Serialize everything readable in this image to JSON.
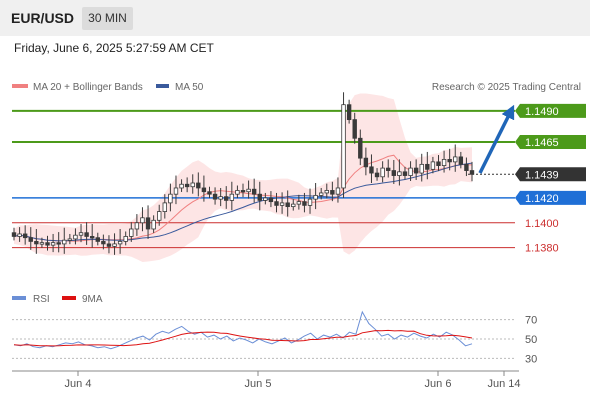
{
  "header": {
    "pair": "EUR/USD",
    "timeframe": "30 MIN"
  },
  "timestamp": "Friday, June 6, 2025 5:27:59 AM CET",
  "copyright": "Research © 2025 Trading Central",
  "colors": {
    "resistance": "#4c9a1a",
    "support_pivot": "#1f6fd6",
    "support": "#cc2f2f",
    "current": "#333333",
    "ma20": "#f08080",
    "ma50": "#3a5a9c",
    "bollinger_fill": "#fde0e0",
    "candle": "#3a3a3a",
    "rsi": "#6b8fd6",
    "rsi_ma": "#dd1111",
    "arrow": "#2066b8"
  },
  "chart_data": {
    "type": "candlestick",
    "x_ticks": [
      "Jun 4",
      "Jun 5",
      "Jun 6",
      "Jun 14"
    ],
    "legend": [
      {
        "label": "MA 20 + Bollinger Bands",
        "color": "#f08080"
      },
      {
        "label": "MA 50",
        "color": "#3a5a9c"
      }
    ],
    "ylim": [
      1.1362,
      1.1502
    ],
    "levels": [
      {
        "value": 1.149,
        "label": "1.1490",
        "kind": "resistance"
      },
      {
        "value": 1.1465,
        "label": "1.1465",
        "kind": "resistance"
      },
      {
        "value": 1.1439,
        "label": "1.1439",
        "kind": "current"
      },
      {
        "value": 1.142,
        "label": "1.1420",
        "kind": "pivot"
      },
      {
        "value": 1.14,
        "label": "1.1400",
        "kind": "support"
      },
      {
        "value": 1.138,
        "label": "1.1380",
        "kind": "support"
      }
    ],
    "close_series": [
      1.1389,
      1.1391,
      1.1388,
      1.1385,
      1.1383,
      1.1384,
      1.1382,
      1.1384,
      1.1383,
      1.1386,
      1.1387,
      1.139,
      1.1392,
      1.1389,
      1.1388,
      1.1385,
      1.1383,
      1.1381,
      1.1383,
      1.1385,
      1.1389,
      1.1395,
      1.14,
      1.1404,
      1.1395,
      1.1402,
      1.1409,
      1.1416,
      1.1423,
      1.1428,
      1.1431,
      1.1429,
      1.1432,
      1.1428,
      1.1425,
      1.1423,
      1.1419,
      1.1421,
      1.1418,
      1.1423,
      1.1426,
      1.1425,
      1.1427,
      1.1423,
      1.1418,
      1.142,
      1.1417,
      1.1414,
      1.1416,
      1.1413,
      1.1415,
      1.1417,
      1.1414,
      1.1419,
      1.1422,
      1.1424,
      1.1426,
      1.1423,
      1.1428,
      1.1495,
      1.1483,
      1.1468,
      1.1452,
      1.1445,
      1.144,
      1.1437,
      1.1444,
      1.1442,
      1.1438,
      1.1441,
      1.1438,
      1.1444,
      1.144,
      1.1447,
      1.1443,
      1.1449,
      1.1446,
      1.1451,
      1.1449,
      1.1453,
      1.1447,
      1.1442,
      1.1439
    ],
    "rsi": {
      "legend": [
        {
          "label": "RSI",
          "color": "#6b8fd6"
        },
        {
          "label": "9MA",
          "color": "#dd1111"
        }
      ],
      "ticks": [
        70,
        50,
        30
      ],
      "ylim": [
        20,
        80
      ],
      "values": [
        44,
        43,
        45,
        42,
        41,
        43,
        42,
        44,
        46,
        45,
        47,
        44,
        43,
        41,
        42,
        40,
        42,
        45,
        48,
        51,
        53,
        49,
        55,
        58,
        56,
        60,
        63,
        58,
        55,
        57,
        52,
        54,
        50,
        53,
        48,
        51,
        49,
        46,
        50,
        47,
        45,
        48,
        51,
        46,
        49,
        53,
        56,
        50,
        54,
        52,
        55,
        51,
        57,
        55,
        78,
        66,
        60,
        53,
        55,
        50,
        54,
        52,
        56,
        53,
        51,
        55,
        52,
        57,
        54,
        49,
        43,
        45
      ]
    }
  }
}
